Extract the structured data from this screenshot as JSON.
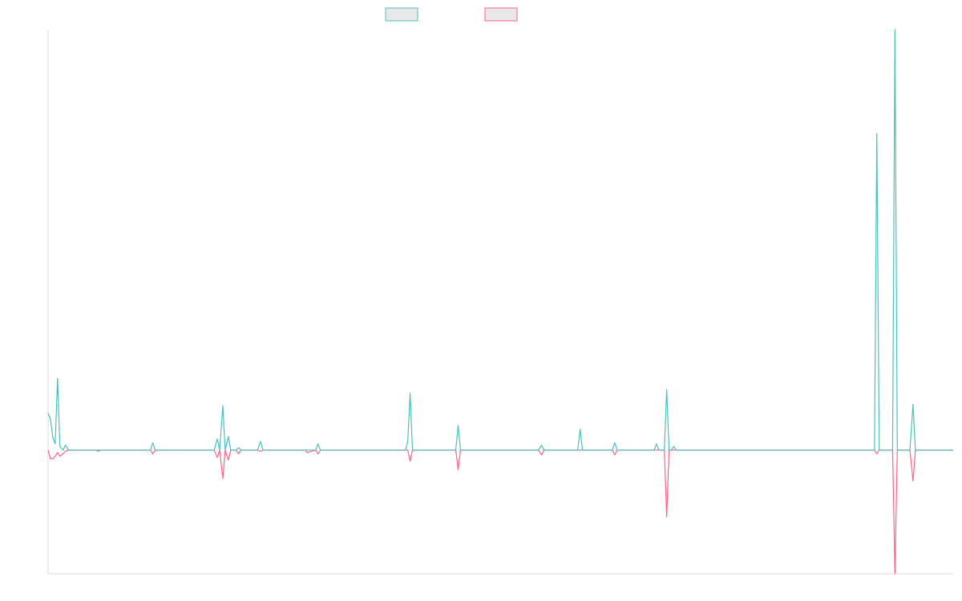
{
  "chart_data": {
    "type": "line",
    "title": "",
    "xlabel": "",
    "ylabel": "",
    "grid": false,
    "legend_position": "top-center",
    "ylim": [
      -1.0,
      3.4
    ],
    "xlim": [
      0,
      1150
    ],
    "colors": {
      "axis": "#dddddd",
      "legend_fill": "#e8e8e8"
    },
    "series": [
      {
        "name": "",
        "color": "#4bc0c0",
        "points": [
          [
            0,
            0.3
          ],
          [
            3,
            0.25
          ],
          [
            6,
            0.1
          ],
          [
            9,
            0.05
          ],
          [
            12,
            0.58
          ],
          [
            15,
            0.03
          ],
          [
            19,
            0.0
          ],
          [
            22,
            0.04
          ],
          [
            26,
            0.0
          ],
          [
            60,
            0.0
          ],
          [
            64,
            0.0
          ],
          [
            66,
            0.0
          ],
          [
            130,
            0.0
          ],
          [
            133,
            0.06
          ],
          [
            136,
            0.0
          ],
          [
            211,
            0.0
          ],
          [
            215,
            0.09
          ],
          [
            218,
            0.0
          ],
          [
            222,
            0.36
          ],
          [
            225,
            0.0
          ],
          [
            229,
            0.11
          ],
          [
            232,
            0.0
          ],
          [
            239,
            0.0
          ],
          [
            242,
            0.02
          ],
          [
            245,
            0.0
          ],
          [
            266,
            0.0
          ],
          [
            270,
            0.07
          ],
          [
            273,
            0.0
          ],
          [
            327,
            0.0
          ],
          [
            329,
            0.0
          ],
          [
            340,
            0.0
          ],
          [
            343,
            0.05
          ],
          [
            346,
            0.0
          ],
          [
            454,
            0.0
          ],
          [
            457,
            0.07
          ],
          [
            460,
            0.46
          ],
          [
            463,
            0.0
          ],
          [
            515,
            0.0
          ],
          [
            518,
            0.0
          ],
          [
            521,
            0.2
          ],
          [
            524,
            0.0
          ],
          [
            623,
            0.0
          ],
          [
            627,
            0.04
          ],
          [
            630,
            0.0
          ],
          [
            664,
            0.0
          ],
          [
            673,
            0.0
          ],
          [
            676,
            0.17
          ],
          [
            679,
            0.0
          ],
          [
            717,
            0.0
          ],
          [
            720,
            0.06
          ],
          [
            723,
            0.0
          ],
          [
            770,
            0.0
          ],
          [
            773,
            0.05
          ],
          [
            776,
            0.0
          ],
          [
            780,
            0.0
          ],
          [
            783,
            0.0
          ],
          [
            786,
            0.49
          ],
          [
            789,
            0.0
          ],
          [
            792,
            0.0
          ],
          [
            795,
            0.03
          ],
          [
            798,
            0.0
          ],
          [
            1050,
            0.0
          ],
          [
            1053,
            2.56
          ],
          [
            1056,
            0.0
          ],
          [
            1073,
            0.0
          ],
          [
            1076,
            3.4
          ],
          [
            1079,
            0.0
          ],
          [
            1095,
            0.0
          ],
          [
            1099,
            0.37
          ],
          [
            1102,
            0.0
          ],
          [
            1150,
            0.0
          ]
        ]
      },
      {
        "name": "",
        "color": "#ff6384",
        "points": [
          [
            0,
            0.0
          ],
          [
            3,
            -0.07
          ],
          [
            6,
            -0.07
          ],
          [
            9,
            -0.05
          ],
          [
            12,
            -0.02
          ],
          [
            15,
            -0.05
          ],
          [
            19,
            -0.03
          ],
          [
            22,
            -0.01
          ],
          [
            26,
            0.0
          ],
          [
            60,
            0.0
          ],
          [
            64,
            -0.01
          ],
          [
            66,
            0.0
          ],
          [
            130,
            0.0
          ],
          [
            133,
            -0.03
          ],
          [
            136,
            0.0
          ],
          [
            211,
            0.0
          ],
          [
            215,
            -0.06
          ],
          [
            218,
            0.0
          ],
          [
            222,
            -0.23
          ],
          [
            225,
            0.0
          ],
          [
            229,
            -0.08
          ],
          [
            232,
            0.0
          ],
          [
            239,
            0.0
          ],
          [
            242,
            -0.03
          ],
          [
            245,
            0.0
          ],
          [
            266,
            0.0
          ],
          [
            270,
            -0.01
          ],
          [
            273,
            0.0
          ],
          [
            327,
            0.0
          ],
          [
            329,
            -0.02
          ],
          [
            340,
            0.0
          ],
          [
            343,
            -0.03
          ],
          [
            346,
            0.0
          ],
          [
            454,
            0.0
          ],
          [
            457,
            0.0
          ],
          [
            460,
            -0.09
          ],
          [
            463,
            0.0
          ],
          [
            515,
            0.0
          ],
          [
            518,
            0.0
          ],
          [
            521,
            -0.16
          ],
          [
            524,
            0.0
          ],
          [
            623,
            0.0
          ],
          [
            627,
            -0.04
          ],
          [
            630,
            0.0
          ],
          [
            664,
            0.0
          ],
          [
            673,
            0.0
          ],
          [
            676,
            0.0
          ],
          [
            679,
            0.0
          ],
          [
            717,
            0.0
          ],
          [
            720,
            -0.04
          ],
          [
            723,
            0.0
          ],
          [
            770,
            0.0
          ],
          [
            773,
            0.0
          ],
          [
            776,
            0.0
          ],
          [
            780,
            0.0
          ],
          [
            783,
            0.0
          ],
          [
            786,
            -0.54
          ],
          [
            789,
            0.0
          ],
          [
            792,
            0.0
          ],
          [
            795,
            0.0
          ],
          [
            798,
            0.0
          ],
          [
            1050,
            0.0
          ],
          [
            1053,
            -0.03
          ],
          [
            1056,
            0.0
          ],
          [
            1073,
            0.0
          ],
          [
            1076,
            -1.0
          ],
          [
            1079,
            0.0
          ],
          [
            1095,
            0.0
          ],
          [
            1099,
            -0.25
          ],
          [
            1102,
            0.0
          ],
          [
            1150,
            0.0
          ]
        ]
      }
    ]
  }
}
